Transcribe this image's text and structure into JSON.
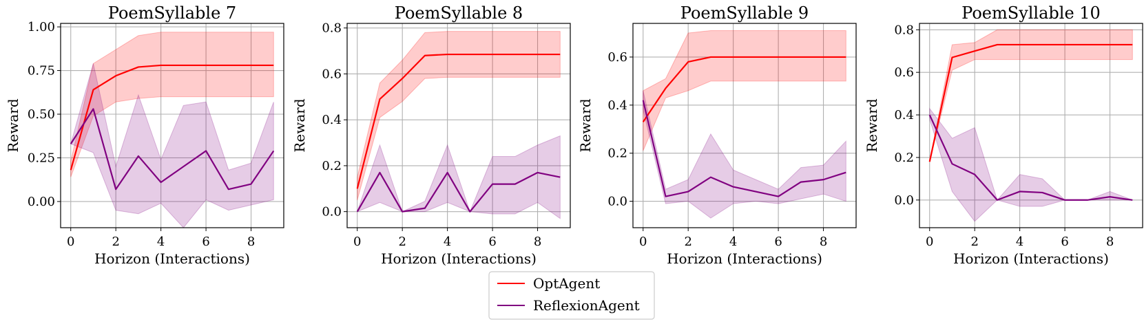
{
  "figure": {
    "legend": {
      "placement": "bottom-center",
      "entries": [
        {
          "label": "OptAgent",
          "color": "#ff0000"
        },
        {
          "label": "ReflexionAgent",
          "color": "#800080"
        }
      ]
    }
  },
  "chart_data": [
    {
      "type": "line",
      "title": "PoemSyllable 7",
      "xlabel": "Horizon (Interactions)",
      "ylabel": "Reward",
      "xlim": [
        -0.45,
        9.45
      ],
      "ylim": [
        -0.15,
        1.02
      ],
      "xticks": [
        0,
        2,
        4,
        6,
        8
      ],
      "yticks": [
        0.0,
        0.25,
        0.5,
        0.75,
        1.0
      ],
      "ytick_labels": [
        "0.00",
        "0.25",
        "0.50",
        "0.75",
        "1.00"
      ],
      "grid": true,
      "x": [
        0,
        1,
        2,
        3,
        4,
        5,
        6,
        7,
        8,
        9
      ],
      "series": [
        {
          "name": "OptAgent",
          "color": "#ff0000",
          "values": [
            0.18,
            0.64,
            0.72,
            0.77,
            0.78,
            0.78,
            0.78,
            0.78,
            0.78,
            0.78
          ],
          "lower": [
            0.14,
            0.49,
            0.57,
            0.59,
            0.6,
            0.6,
            0.6,
            0.6,
            0.6,
            0.6
          ],
          "upper": [
            0.23,
            0.79,
            0.87,
            0.95,
            0.97,
            0.97,
            0.97,
            0.97,
            0.97,
            0.97
          ]
        },
        {
          "name": "ReflexionAgent",
          "color": "#800080",
          "values": [
            0.33,
            0.53,
            0.07,
            0.26,
            0.11,
            0.2,
            0.29,
            0.07,
            0.1,
            0.29
          ],
          "lower": [
            0.33,
            0.28,
            -0.05,
            -0.07,
            -0.01,
            -0.15,
            0.01,
            -0.05,
            -0.02,
            0.01
          ],
          "upper": [
            0.33,
            0.79,
            0.2,
            0.61,
            0.24,
            0.55,
            0.57,
            0.18,
            0.22,
            0.57
          ]
        }
      ]
    },
    {
      "type": "line",
      "title": "PoemSyllable 8",
      "xlabel": "Horizon (Interactions)",
      "ylabel": "Reward",
      "xlim": [
        -0.45,
        9.45
      ],
      "ylim": [
        -0.07,
        0.82
      ],
      "xticks": [
        0,
        2,
        4,
        6,
        8
      ],
      "yticks": [
        0.0,
        0.2,
        0.4,
        0.6,
        0.8
      ],
      "ytick_labels": [
        "0.0",
        "0.2",
        "0.4",
        "0.6",
        "0.8"
      ],
      "grid": true,
      "x": [
        0,
        1,
        2,
        3,
        4,
        5,
        6,
        7,
        8,
        9
      ],
      "series": [
        {
          "name": "OptAgent",
          "color": "#ff0000",
          "values": [
            0.1,
            0.49,
            0.58,
            0.68,
            0.685,
            0.685,
            0.685,
            0.685,
            0.685,
            0.685
          ],
          "lower": [
            0.05,
            0.41,
            0.48,
            0.58,
            0.585,
            0.585,
            0.585,
            0.585,
            0.585,
            0.585
          ],
          "upper": [
            0.15,
            0.56,
            0.66,
            0.78,
            0.785,
            0.785,
            0.785,
            0.785,
            0.785,
            0.785
          ]
        },
        {
          "name": "ReflexionAgent",
          "color": "#800080",
          "values": [
            0.0,
            0.17,
            0.0,
            0.015,
            0.17,
            0.0,
            0.12,
            0.12,
            0.17,
            0.15
          ],
          "lower": [
            0.0,
            0.04,
            0.0,
            0.0,
            0.04,
            0.0,
            -0.01,
            -0.01,
            0.04,
            -0.03
          ],
          "upper": [
            0.0,
            0.29,
            0.0,
            0.045,
            0.29,
            0.0,
            0.24,
            0.24,
            0.29,
            0.33
          ]
        }
      ]
    },
    {
      "type": "line",
      "title": "PoemSyllable 9",
      "xlabel": "Horizon (Interactions)",
      "ylabel": "Reward",
      "xlim": [
        -0.45,
        9.45
      ],
      "ylim": [
        -0.11,
        0.74
      ],
      "xticks": [
        0,
        2,
        4,
        6,
        8
      ],
      "yticks": [
        0.0,
        0.2,
        0.4,
        0.6
      ],
      "ytick_labels": [
        "0.0",
        "0.2",
        "0.4",
        "0.6"
      ],
      "grid": true,
      "x": [
        0,
        1,
        2,
        3,
        4,
        5,
        6,
        7,
        8,
        9
      ],
      "series": [
        {
          "name": "OptAgent",
          "color": "#ff0000",
          "values": [
            0.33,
            0.47,
            0.58,
            0.6,
            0.6,
            0.6,
            0.6,
            0.6,
            0.6,
            0.6
          ],
          "lower": [
            0.21,
            0.43,
            0.46,
            0.5,
            0.5,
            0.5,
            0.5,
            0.5,
            0.5,
            0.5
          ],
          "upper": [
            0.46,
            0.51,
            0.7,
            0.71,
            0.71,
            0.71,
            0.71,
            0.71,
            0.71,
            0.71
          ]
        },
        {
          "name": "ReflexionAgent",
          "color": "#800080",
          "values": [
            0.42,
            0.02,
            0.04,
            0.1,
            0.06,
            0.04,
            0.02,
            0.08,
            0.09,
            0.12
          ],
          "lower": [
            0.38,
            -0.01,
            0.0,
            -0.07,
            -0.01,
            0.0,
            -0.01,
            0.01,
            0.03,
            0.0
          ],
          "upper": [
            0.46,
            0.05,
            0.09,
            0.28,
            0.13,
            0.09,
            0.05,
            0.14,
            0.15,
            0.25
          ]
        }
      ]
    },
    {
      "type": "line",
      "title": "PoemSyllable 10",
      "xlabel": "Horizon (Interactions)",
      "ylabel": "Reward",
      "xlim": [
        -0.45,
        9.45
      ],
      "ylim": [
        -0.13,
        0.83
      ],
      "xticks": [
        0,
        2,
        4,
        6,
        8
      ],
      "yticks": [
        0.0,
        0.2,
        0.4,
        0.6,
        0.8
      ],
      "ytick_labels": [
        "0.0",
        "0.2",
        "0.4",
        "0.6",
        "0.8"
      ],
      "grid": true,
      "x": [
        0,
        1,
        2,
        3,
        4,
        5,
        6,
        7,
        8,
        9
      ],
      "series": [
        {
          "name": "OptAgent",
          "color": "#ff0000",
          "values": [
            0.18,
            0.67,
            0.7,
            0.73,
            0.73,
            0.73,
            0.73,
            0.73,
            0.73,
            0.73
          ],
          "lower": [
            0.18,
            0.61,
            0.66,
            0.66,
            0.66,
            0.66,
            0.66,
            0.66,
            0.66,
            0.66
          ],
          "upper": [
            0.18,
            0.73,
            0.74,
            0.8,
            0.8,
            0.8,
            0.8,
            0.8,
            0.8,
            0.8
          ]
        },
        {
          "name": "ReflexionAgent",
          "color": "#800080",
          "values": [
            0.4,
            0.17,
            0.12,
            0.0,
            0.04,
            0.035,
            0.0,
            0.0,
            0.015,
            0.0
          ],
          "lower": [
            0.38,
            0.04,
            -0.1,
            0.0,
            -0.03,
            -0.03,
            0.0,
            0.0,
            0.0,
            0.0
          ],
          "upper": [
            0.43,
            0.29,
            0.34,
            0.0,
            0.12,
            0.1,
            0.0,
            0.0,
            0.04,
            0.0
          ]
        }
      ]
    }
  ]
}
